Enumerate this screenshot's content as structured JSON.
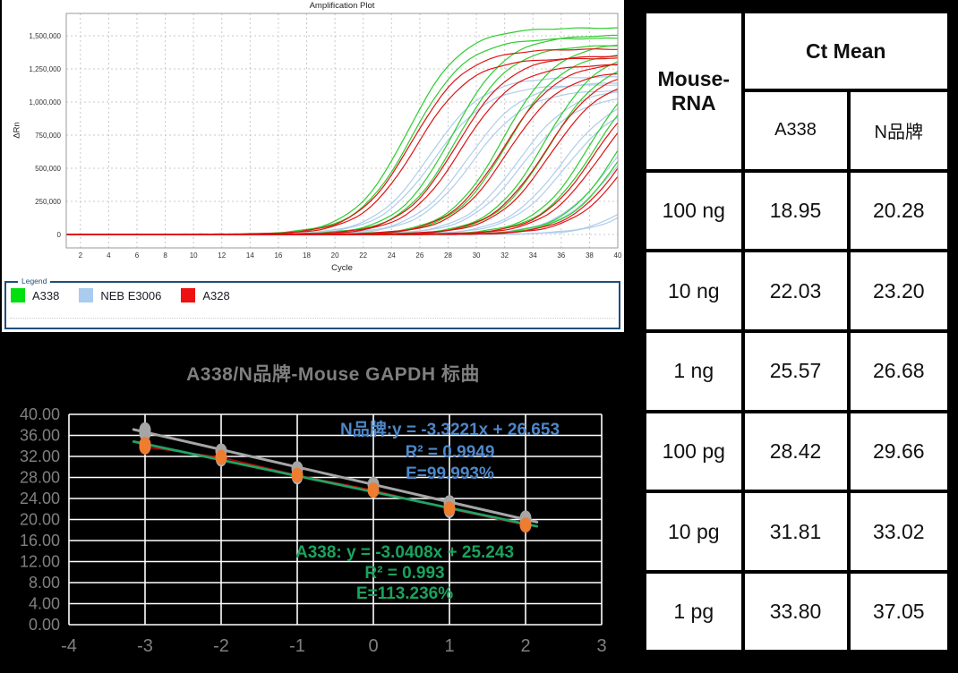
{
  "page": {
    "background": "#000000"
  },
  "chart_data": [
    {
      "type": "line",
      "title": "Amplification Plot",
      "xlabel": "Cycle",
      "ylabel": "ΔRn",
      "xlim": [
        1,
        40
      ],
      "ylim": [
        -100000,
        1670000
      ],
      "grid": true,
      "xticks": [
        2,
        4,
        6,
        8,
        10,
        12,
        14,
        16,
        18,
        20,
        22,
        24,
        26,
        28,
        30,
        32,
        34,
        36,
        38,
        40
      ],
      "yticks": [
        0,
        250000,
        500000,
        750000,
        1000000,
        1250000,
        1500000
      ],
      "ytick_labels": [
        "0",
        "250,000",
        "500,000",
        "750,000",
        "1,000,000",
        "1,250,000",
        "1,500,000"
      ],
      "legend": {
        "title": "Legend",
        "border_color": "#1F4E79",
        "entries": [
          {
            "label": "A338",
            "color": "#00DF10"
          },
          {
            "label": "NEB E3006",
            "color": "#A9CCEF"
          },
          {
            "label": "A328",
            "color": "#EE1111"
          }
        ]
      },
      "series": [
        {
          "name": "A338",
          "color": "#2FCC2F",
          "plateau": 1560000,
          "ct_values": [
            18.95,
            22.03,
            25.57,
            28.42,
            31.81,
            33.8
          ]
        },
        {
          "name": "NEB E3006",
          "color": "#AECDEB",
          "plateau": 1190000,
          "ct_values": [
            20.28,
            23.2,
            26.68,
            29.66,
            33.02,
            37.05
          ]
        },
        {
          "name": "A328",
          "color": "#DD1414",
          "plateau": 1400000,
          "ct_values": [
            19.1,
            22.2,
            25.7,
            28.6,
            32.0,
            34.1
          ]
        }
      ],
      "draw_order": [
        1,
        0,
        2
      ],
      "replicates_per_curve": 2,
      "dilution_log10_ng": [
        2,
        1,
        0,
        -1,
        -2,
        -3
      ]
    },
    {
      "type": "scatter",
      "title": "A338/N品牌-Mouse GAPDH 标曲",
      "xlim": [
        -4,
        3
      ],
      "ylim": [
        0,
        40
      ],
      "grid": true,
      "xticks": [
        -4,
        -3,
        -2,
        -1,
        0,
        1,
        2,
        3
      ],
      "xtick_labels": [
        "-4",
        "-3",
        "-2",
        "-1",
        "0",
        "1",
        "2",
        "3"
      ],
      "yticks": [
        0,
        4,
        8,
        12,
        16,
        20,
        24,
        28,
        32,
        36,
        40
      ],
      "ytick_labels": [
        "0.00",
        "4.00",
        "8.00",
        "12.00",
        "16.00",
        "20.00",
        "24.00",
        "28.00",
        "32.00",
        "36.00",
        "40.00"
      ],
      "series": [
        {
          "name": "N品牌",
          "marker_color": "#A6A6A6",
          "x": [
            -3,
            -2,
            -1,
            0,
            1,
            2
          ],
          "y": [
            37.05,
            33.02,
            29.66,
            26.68,
            23.2,
            20.28
          ],
          "extra_points": [
            [
              -3,
              36.4
            ]
          ],
          "trend": {
            "slope": -3.3221,
            "intercept": 26.653,
            "color": "#A6A6A6",
            "r2": 0.9949,
            "efficiency_pct": 99.993
          },
          "annotation": {
            "color": "#4E87C9",
            "lines": [
              "N品牌:y = -3.3221x + 26.653",
              "R² = 0.9949",
              "E=99.993%"
            ]
          }
        },
        {
          "name": "A338",
          "marker_color": "#ED7D31",
          "line_color": "#C00000",
          "x": [
            -3,
            -2,
            -1,
            0,
            1,
            2
          ],
          "y": [
            33.8,
            31.81,
            28.42,
            25.57,
            22.03,
            18.95
          ],
          "extra_points": [
            [
              -3,
              34.3
            ]
          ],
          "shadow_points": [
            [
              -2,
              31.45
            ],
            [
              -1,
              28.05
            ],
            [
              1,
              21.65
            ]
          ],
          "shadow_color": "#9DC3E6",
          "trend": {
            "slope": -3.0408,
            "intercept": 25.243,
            "color": "#21A366",
            "r2": 0.993,
            "efficiency_pct": 113.236
          },
          "annotation": {
            "color": "#1BA35C",
            "lines": [
              "A338: y = -3.0408x + 25.243",
              "R² = 0.993",
              "E=113.236%"
            ]
          }
        }
      ]
    },
    {
      "type": "table",
      "corner_header": "Mouse-RNA",
      "group_header": "Ct Mean",
      "sub_headers": [
        "A338",
        "N品牌"
      ],
      "rows": [
        [
          "100 ng",
          "18.95",
          "20.28"
        ],
        [
          "10 ng",
          "22.03",
          "23.20"
        ],
        [
          "1 ng",
          "25.57",
          "26.68"
        ],
        [
          "100 pg",
          "28.42",
          "29.66"
        ],
        [
          "10 pg",
          "31.81",
          "33.02"
        ],
        [
          "1 pg",
          "33.80",
          "37.05"
        ]
      ]
    }
  ]
}
